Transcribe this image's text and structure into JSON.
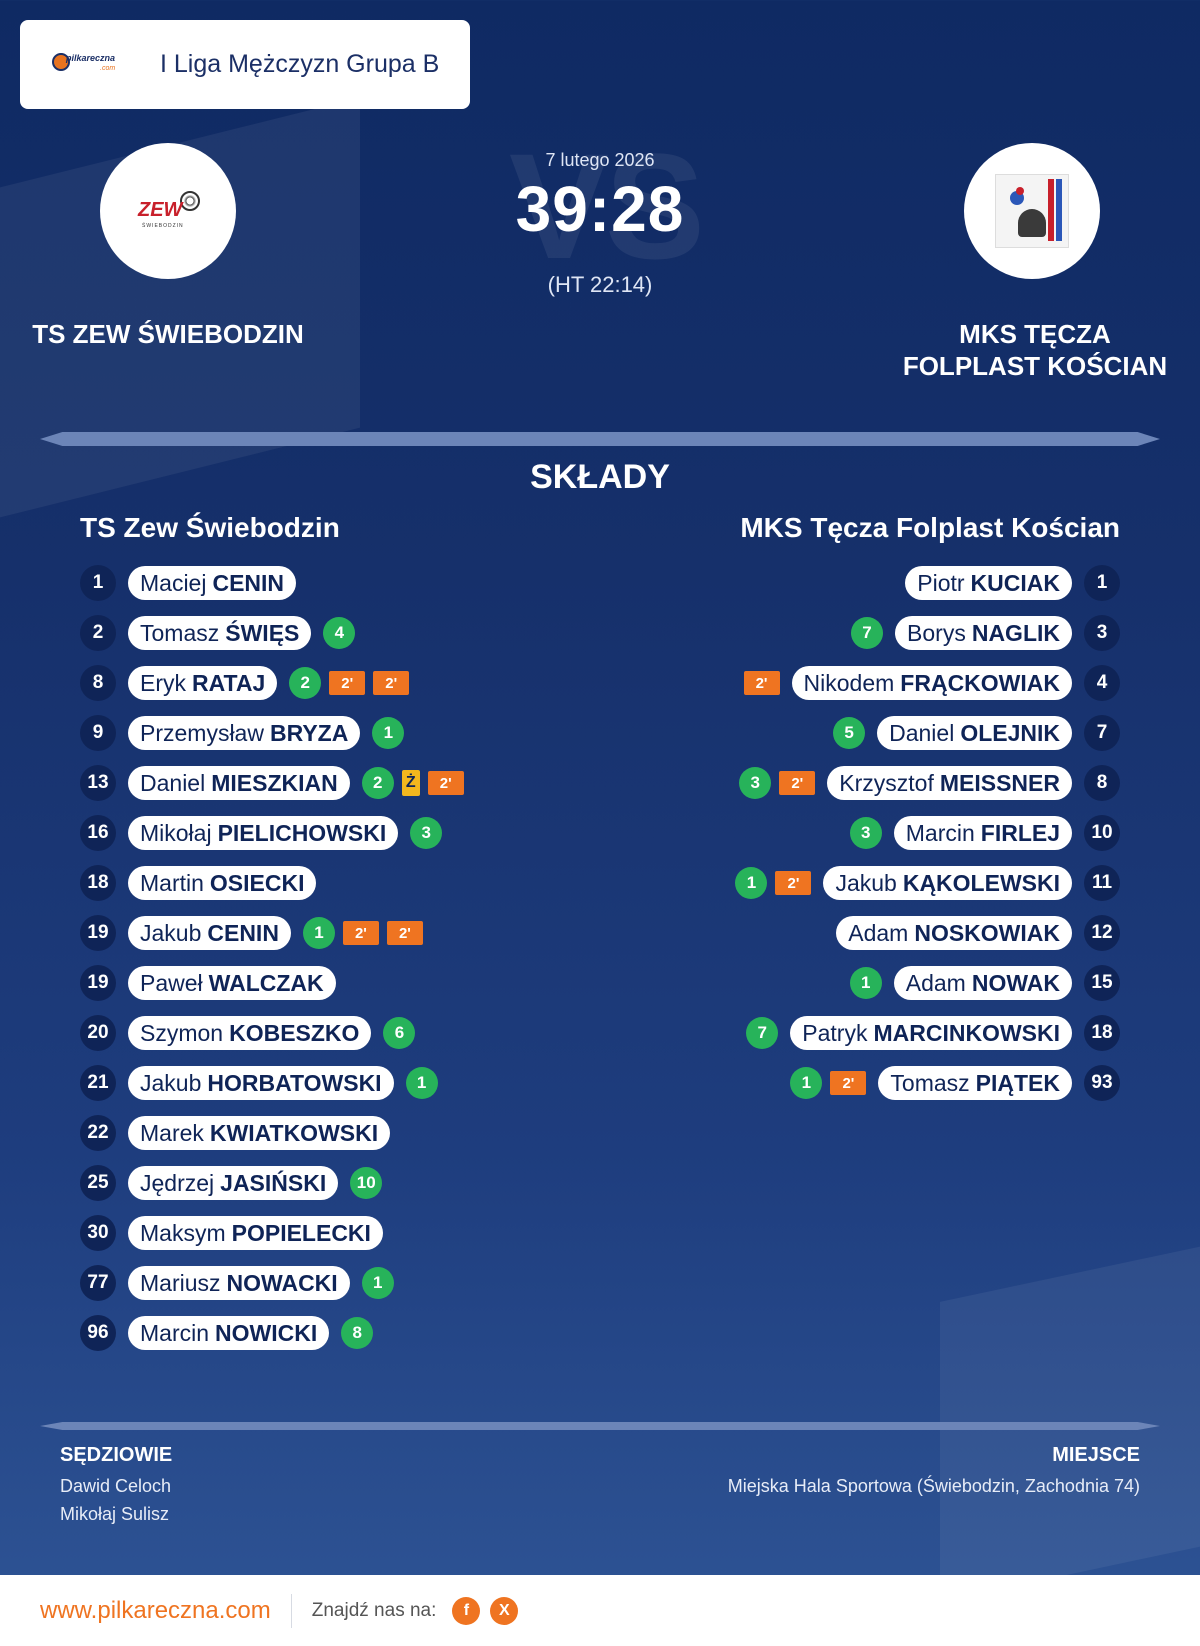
{
  "league": {
    "logo_text": "pilkareczna",
    "logo_subtext": ".com",
    "name": "I Liga Mężczyzn Grupa B"
  },
  "match": {
    "date": "7 lutego 2026",
    "score": "39:28",
    "halftime": "(HT 22:14)",
    "vs_watermark": "VS"
  },
  "home": {
    "name": "TS ZEW ŚWIEBODZIN",
    "logo_text": "ZEW",
    "logo_subtext": "ŚWIEBODZIN",
    "squad_title": "TS Zew Świebodzin",
    "players": [
      {
        "num": "1",
        "first": "Maciej",
        "last": "CENIN",
        "stats": []
      },
      {
        "num": "2",
        "first": "Tomasz",
        "last": "ŚWIĘS",
        "stats": [
          {
            "t": "goal",
            "v": "4"
          }
        ]
      },
      {
        "num": "8",
        "first": "Eryk",
        "last": "RATAJ",
        "stats": [
          {
            "t": "goal",
            "v": "2"
          },
          {
            "t": "susp",
            "v": "2'"
          },
          {
            "t": "susp",
            "v": "2'"
          }
        ]
      },
      {
        "num": "9",
        "first": "Przemysław",
        "last": "BRYZA",
        "stats": [
          {
            "t": "goal",
            "v": "1"
          }
        ]
      },
      {
        "num": "13",
        "first": "Daniel",
        "last": "MIESZKIAN",
        "stats": [
          {
            "t": "goal",
            "v": "2"
          },
          {
            "t": "yellow",
            "v": "Ż"
          },
          {
            "t": "susp",
            "v": "2'"
          }
        ]
      },
      {
        "num": "16",
        "first": "Mikołaj",
        "last": "PIELICHOWSKI",
        "stats": [
          {
            "t": "goal",
            "v": "3"
          }
        ]
      },
      {
        "num": "18",
        "first": "Martin",
        "last": "OSIECKI",
        "stats": []
      },
      {
        "num": "19",
        "first": "Jakub",
        "last": "CENIN",
        "stats": [
          {
            "t": "goal",
            "v": "1"
          },
          {
            "t": "susp",
            "v": "2'"
          },
          {
            "t": "susp",
            "v": "2'"
          }
        ]
      },
      {
        "num": "19",
        "first": "Paweł",
        "last": "WALCZAK",
        "stats": []
      },
      {
        "num": "20",
        "first": "Szymon",
        "last": "KOBESZKO",
        "stats": [
          {
            "t": "goal",
            "v": "6"
          }
        ]
      },
      {
        "num": "21",
        "first": "Jakub",
        "last": "HORBATOWSKI",
        "stats": [
          {
            "t": "goal",
            "v": "1"
          }
        ]
      },
      {
        "num": "22",
        "first": "Marek",
        "last": "KWIATKOWSKI",
        "stats": []
      },
      {
        "num": "25",
        "first": "Jędrzej",
        "last": "JASIŃSKI",
        "stats": [
          {
            "t": "goal",
            "v": "10"
          }
        ]
      },
      {
        "num": "30",
        "first": "Maksym",
        "last": "POPIELECKI",
        "stats": []
      },
      {
        "num": "77",
        "first": "Mariusz",
        "last": "NOWACKI",
        "stats": [
          {
            "t": "goal",
            "v": "1"
          }
        ]
      },
      {
        "num": "96",
        "first": "Marcin",
        "last": "NOWICKI",
        "stats": [
          {
            "t": "goal",
            "v": "8"
          }
        ]
      }
    ]
  },
  "away": {
    "name_line1": "MKS TĘCZA",
    "name_line2": "FOLPLAST KOŚCIAN",
    "squad_title": "MKS Tęcza Folplast Kościan",
    "players": [
      {
        "num": "1",
        "first": "Piotr",
        "last": "KUCIAK",
        "stats": []
      },
      {
        "num": "3",
        "first": "Borys",
        "last": "NAGLIK",
        "stats": [
          {
            "t": "goal",
            "v": "7"
          }
        ]
      },
      {
        "num": "4",
        "first": "Nikodem",
        "last": "FRĄCKOWIAK",
        "stats": [
          {
            "t": "susp",
            "v": "2'"
          }
        ]
      },
      {
        "num": "7",
        "first": "Daniel",
        "last": "OLEJNIK",
        "stats": [
          {
            "t": "goal",
            "v": "5"
          }
        ]
      },
      {
        "num": "8",
        "first": "Krzysztof",
        "last": "MEISSNER",
        "stats": [
          {
            "t": "goal",
            "v": "3"
          },
          {
            "t": "susp",
            "v": "2'"
          }
        ]
      },
      {
        "num": "10",
        "first": "Marcin",
        "last": "FIRLEJ",
        "stats": [
          {
            "t": "goal",
            "v": "3"
          }
        ]
      },
      {
        "num": "11",
        "first": "Jakub",
        "last": "KĄKOLEWSKI",
        "stats": [
          {
            "t": "goal",
            "v": "1"
          },
          {
            "t": "susp",
            "v": "2'"
          }
        ]
      },
      {
        "num": "12",
        "first": "Adam",
        "last": "NOSKOWIAK",
        "stats": []
      },
      {
        "num": "15",
        "first": "Adam",
        "last": "NOWAK",
        "stats": [
          {
            "t": "goal",
            "v": "1"
          }
        ]
      },
      {
        "num": "18",
        "first": "Patryk",
        "last": "MARCINKOWSKI",
        "stats": [
          {
            "t": "goal",
            "v": "7"
          }
        ]
      },
      {
        "num": "93",
        "first": "Tomasz",
        "last": "PIĄTEK",
        "stats": [
          {
            "t": "goal",
            "v": "1"
          },
          {
            "t": "susp",
            "v": "2'"
          }
        ]
      }
    ]
  },
  "section_title": "SKŁADY",
  "referees": {
    "label": "SĘDZIOWIE",
    "names": [
      "Dawid Celoch",
      "Mikołaj Sulisz"
    ]
  },
  "venue": {
    "label": "MIEJSCE",
    "text": "Miejska Hala Sportowa (Świebodzin, Zachodnia 74)"
  },
  "footer": {
    "url": "www.pilkareczna.com",
    "find_label": "Znajdź nas na:",
    "social": [
      "f",
      "X"
    ]
  },
  "colors": {
    "background": "#16306b",
    "accent": "#ef7421",
    "goal": "#27b35a",
    "suspension": "#ef7421",
    "yellow_card": "#f3b71e",
    "number_badge": "#0f2457"
  }
}
